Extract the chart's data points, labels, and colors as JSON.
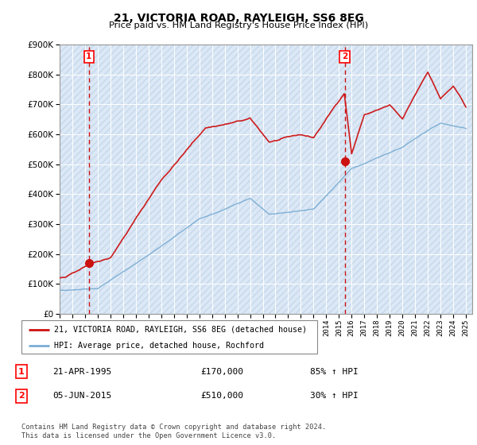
{
  "title": "21, VICTORIA ROAD, RAYLEIGH, SS6 8EG",
  "subtitle": "Price paid vs. HM Land Registry's House Price Index (HPI)",
  "legend_line1": "21, VICTORIA ROAD, RAYLEIGH, SS6 8EG (detached house)",
  "legend_line2": "HPI: Average price, detached house, Rochford",
  "transaction1_date": "21-APR-1995",
  "transaction1_price": "£170,000",
  "transaction1_hpi": "85% ↑ HPI",
  "transaction2_date": "05-JUN-2015",
  "transaction2_price": "£510,000",
  "transaction2_hpi": "30% ↑ HPI",
  "footnote": "Contains HM Land Registry data © Crown copyright and database right 2024.\nThis data is licensed under the Open Government Licence v3.0.",
  "hpi_color": "#7aadd4",
  "price_color": "#cc1111",
  "vline_color": "#cc1111",
  "ylim_min": 0,
  "ylim_max": 900000,
  "yticks": [
    0,
    100000,
    200000,
    300000,
    400000,
    500000,
    600000,
    700000,
    800000,
    900000
  ],
  "plot_bg_color": "#dce8f5",
  "hatch_color": "#c5d8ec"
}
